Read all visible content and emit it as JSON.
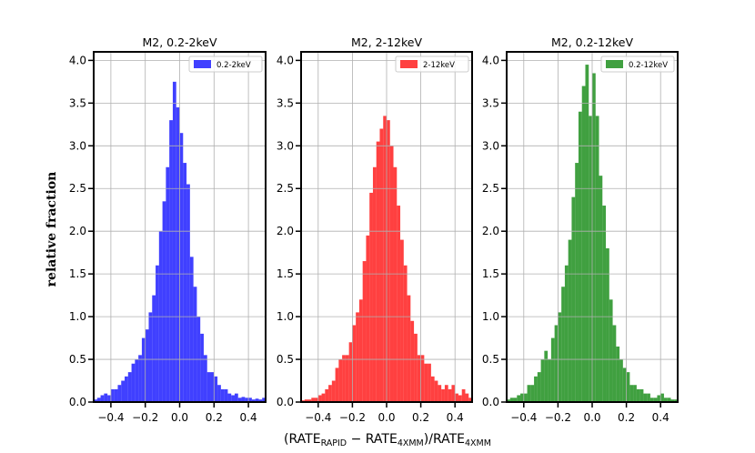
{
  "ylabel": "relative fraction",
  "xlabel": {
    "a": "(RATE",
    "a_sub": "RAPID",
    "b": " − RATE",
    "b_sub": "4XMM",
    "c": ")/RATE",
    "c_sub": "4XMM"
  },
  "chart_data": [
    {
      "type": "bar",
      "title": "M2, 0.2-2keV",
      "legend": "0.2-2keV",
      "legend_position": "upper right",
      "color": "#0000ff",
      "grid": true,
      "xlim": [
        -0.5,
        0.5
      ],
      "ylim": [
        0,
        4.1
      ],
      "xticks": [
        -0.4,
        -0.2,
        0.0,
        0.2,
        0.4
      ],
      "xtick_labels": [
        "−0.4",
        "−0.2",
        "0.0",
        "0.2",
        "0.4"
      ],
      "yticks": [
        0.0,
        0.5,
        1.0,
        1.5,
        2.0,
        2.5,
        3.0,
        3.5,
        4.0
      ],
      "ytick_labels": [
        "0.0",
        "0.5",
        "1.0",
        "1.5",
        "2.0",
        "2.5",
        "3.0",
        "3.5",
        "4.0"
      ],
      "bin_width": 0.02,
      "x": [
        -0.49,
        -0.47,
        -0.45,
        -0.43,
        -0.41,
        -0.39,
        -0.37,
        -0.35,
        -0.33,
        -0.31,
        -0.29,
        -0.27,
        -0.25,
        -0.23,
        -0.21,
        -0.19,
        -0.17,
        -0.15,
        -0.13,
        -0.11,
        -0.09,
        -0.07,
        -0.05,
        -0.03,
        -0.01,
        0.01,
        0.03,
        0.05,
        0.07,
        0.09,
        0.11,
        0.13,
        0.15,
        0.17,
        0.19,
        0.21,
        0.23,
        0.25,
        0.27,
        0.29,
        0.31,
        0.33,
        0.35,
        0.37,
        0.39,
        0.41,
        0.43,
        0.45,
        0.47,
        0.49
      ],
      "values": [
        0.03,
        0.05,
        0.08,
        0.1,
        0.08,
        0.15,
        0.15,
        0.2,
        0.25,
        0.3,
        0.35,
        0.45,
        0.5,
        0.55,
        0.75,
        0.85,
        1.05,
        1.25,
        1.6,
        2.0,
        2.35,
        2.75,
        3.3,
        3.75,
        3.45,
        3.15,
        2.8,
        2.55,
        1.7,
        1.35,
        1.0,
        0.8,
        0.55,
        0.35,
        0.35,
        0.3,
        0.2,
        0.15,
        0.15,
        0.1,
        0.08,
        0.1,
        0.05,
        0.06,
        0.05,
        0.05,
        0.03,
        0.04,
        0.03,
        0.05
      ]
    },
    {
      "type": "bar",
      "title": "M2, 2-12keV",
      "legend": "2-12keV",
      "legend_position": "upper right",
      "color": "#ff0000",
      "grid": true,
      "xlim": [
        -0.5,
        0.5
      ],
      "ylim": [
        0,
        4.1
      ],
      "xticks": [
        -0.4,
        -0.2,
        0.0,
        0.2,
        0.4
      ],
      "xtick_labels": [
        "−0.4",
        "−0.2",
        "0.0",
        "0.2",
        "0.4"
      ],
      "yticks": [
        0.0,
        0.5,
        1.0,
        1.5,
        2.0,
        2.5,
        3.0,
        3.5,
        4.0
      ],
      "ytick_labels": [
        "0.0",
        "0.5",
        "1.0",
        "1.5",
        "2.0",
        "2.5",
        "3.0",
        "3.5",
        "4.0"
      ],
      "bin_width": 0.02,
      "x": [
        -0.49,
        -0.47,
        -0.45,
        -0.43,
        -0.41,
        -0.39,
        -0.37,
        -0.35,
        -0.33,
        -0.31,
        -0.29,
        -0.27,
        -0.25,
        -0.23,
        -0.21,
        -0.19,
        -0.17,
        -0.15,
        -0.13,
        -0.11,
        -0.09,
        -0.07,
        -0.05,
        -0.03,
        -0.01,
        0.01,
        0.03,
        0.05,
        0.07,
        0.09,
        0.11,
        0.13,
        0.15,
        0.17,
        0.19,
        0.21,
        0.23,
        0.25,
        0.27,
        0.29,
        0.31,
        0.33,
        0.35,
        0.37,
        0.39,
        0.41,
        0.43,
        0.45,
        0.47,
        0.49
      ],
      "values": [
        0.02,
        0.03,
        0.03,
        0.05,
        0.05,
        0.08,
        0.1,
        0.15,
        0.2,
        0.25,
        0.4,
        0.5,
        0.55,
        0.55,
        0.7,
        0.9,
        1.05,
        1.2,
        1.65,
        1.95,
        2.45,
        2.75,
        3.05,
        3.2,
        3.35,
        3.3,
        3.0,
        2.75,
        2.3,
        1.9,
        1.6,
        1.25,
        0.95,
        0.8,
        0.55,
        0.55,
        0.45,
        0.45,
        0.3,
        0.25,
        0.2,
        0.15,
        0.2,
        0.15,
        0.2,
        0.1,
        0.08,
        0.15,
        0.1,
        0.05
      ]
    },
    {
      "type": "bar",
      "title": "M2, 0.2-12keV",
      "legend": "0.2-12keV",
      "legend_position": "upper right",
      "color": "#008000",
      "grid": true,
      "xlim": [
        -0.5,
        0.5
      ],
      "ylim": [
        0,
        4.1
      ],
      "xticks": [
        -0.4,
        -0.2,
        0.0,
        0.2,
        0.4
      ],
      "xtick_labels": [
        "−0.4",
        "−0.2",
        "0.0",
        "0.2",
        "0.4"
      ],
      "yticks": [
        0.0,
        0.5,
        1.0,
        1.5,
        2.0,
        2.5,
        3.0,
        3.5,
        4.0
      ],
      "ytick_labels": [
        "0.0",
        "0.5",
        "1.0",
        "1.5",
        "2.0",
        "2.5",
        "3.0",
        "3.5",
        "4.0"
      ],
      "bin_width": 0.02,
      "x": [
        -0.49,
        -0.47,
        -0.45,
        -0.43,
        -0.41,
        -0.39,
        -0.37,
        -0.35,
        -0.33,
        -0.31,
        -0.29,
        -0.27,
        -0.25,
        -0.23,
        -0.21,
        -0.19,
        -0.17,
        -0.15,
        -0.13,
        -0.11,
        -0.09,
        -0.07,
        -0.05,
        -0.03,
        -0.01,
        0.01,
        0.03,
        0.05,
        0.07,
        0.09,
        0.11,
        0.13,
        0.15,
        0.17,
        0.19,
        0.21,
        0.23,
        0.25,
        0.27,
        0.29,
        0.31,
        0.33,
        0.35,
        0.37,
        0.39,
        0.41,
        0.43,
        0.45,
        0.47,
        0.49
      ],
      "values": [
        0.03,
        0.05,
        0.05,
        0.08,
        0.1,
        0.1,
        0.2,
        0.2,
        0.3,
        0.35,
        0.5,
        0.6,
        0.5,
        0.75,
        0.9,
        1.05,
        1.35,
        1.6,
        1.9,
        2.4,
        2.8,
        3.4,
        3.7,
        3.95,
        3.35,
        3.85,
        3.35,
        2.65,
        2.3,
        1.8,
        1.2,
        0.9,
        0.65,
        0.5,
        0.4,
        0.35,
        0.2,
        0.2,
        0.15,
        0.15,
        0.1,
        0.1,
        0.05,
        0.05,
        0.08,
        0.1,
        0.05,
        0.05,
        0.03,
        0.03
      ]
    }
  ]
}
